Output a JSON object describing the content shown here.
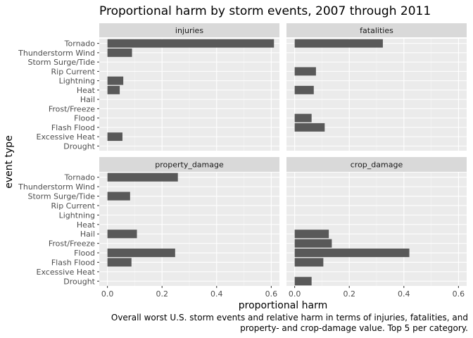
{
  "chart_data": {
    "type": "bar",
    "orientation": "horizontal",
    "title": "Proportional harm by storm events, 2007 through 2011",
    "xlabel": "proportional harm",
    "ylabel": "event type",
    "caption_lines": [
      "Overall worst U.S. storm events and relative harm in terms of injuries, fatalities, and",
      "property- and crop-damage value. Top 5 per category."
    ],
    "xlim": [
      -0.03,
      0.63
    ],
    "xticks": [
      0.0,
      0.2,
      0.4,
      0.6
    ],
    "xtick_labels": [
      "0.0",
      "0.2",
      "0.4",
      "0.6"
    ],
    "grid": true,
    "categories": [
      "Tornado",
      "Thunderstorm Wind",
      "Storm Surge/Tide",
      "Rip Current",
      "Lightning",
      "Heat",
      "Hail",
      "Frost/Freeze",
      "Flood",
      "Flash Flood",
      "Excessive Heat",
      "Drought"
    ],
    "bar_color": "#595959",
    "panel_background": "#ebebeb",
    "strip_background": "#d9d9d9",
    "panels": [
      {
        "name": "injuries",
        "values": [
          0.61,
          0.09,
          0,
          0,
          0.058,
          0.045,
          0,
          0,
          0,
          0,
          0.055,
          0
        ]
      },
      {
        "name": "fatalities",
        "values": [
          0.323,
          0,
          0,
          0.078,
          0,
          0.07,
          0,
          0,
          0.062,
          0.11,
          0,
          0
        ]
      },
      {
        "name": "property_damage",
        "values": [
          0.258,
          0,
          0.083,
          0,
          0,
          0,
          0.108,
          0,
          0.248,
          0.088,
          0,
          0
        ]
      },
      {
        "name": "crop_damage",
        "values": [
          0,
          0,
          0,
          0,
          0,
          0,
          0.125,
          0.136,
          0.42,
          0.105,
          0,
          0.062
        ]
      }
    ]
  }
}
